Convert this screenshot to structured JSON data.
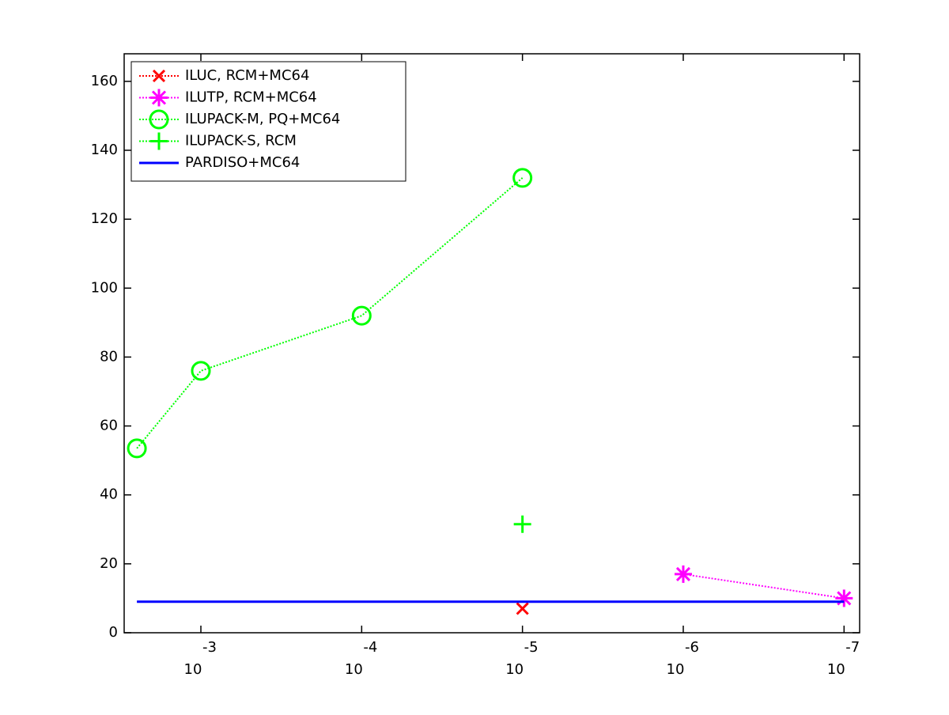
{
  "chart_data": {
    "type": "line",
    "xscale": "log",
    "xlim": [
      0.003,
      8e-08
    ],
    "xticks": [
      {
        "value": 0.001,
        "label": "10",
        "exponent": "-3"
      },
      {
        "value": 0.0001,
        "label": "10",
        "exponent": "-4"
      },
      {
        "value": 1e-05,
        "label": "10",
        "exponent": "-5"
      },
      {
        "value": 1e-06,
        "label": "10",
        "exponent": "-6"
      },
      {
        "value": 1e-07,
        "label": "10",
        "exponent": "-7"
      }
    ],
    "ylim": [
      0,
      168
    ],
    "yticks": [
      0,
      20,
      40,
      60,
      80,
      100,
      120,
      140,
      160
    ],
    "grid": false,
    "legend": "northwest",
    "series": [
      {
        "name": "ILUC, RCM+MC64",
        "color": "#ff0000",
        "marker": "x",
        "line": "dotted",
        "x": [
          1e-05
        ],
        "values": [
          7
        ]
      },
      {
        "name": "ILUTP, RCM+MC64",
        "color": "#ff00ff",
        "marker": "*",
        "line": "dotted",
        "x": [
          1e-06,
          1e-07
        ],
        "values": [
          17,
          10
        ]
      },
      {
        "name": "ILUPACK-M, PQ+MC64",
        "color": "#00ff00",
        "marker": "o",
        "line": "dotted",
        "x": [
          0.0025,
          0.001,
          0.0001,
          1e-05
        ],
        "values": [
          53.5,
          76,
          92,
          132
        ]
      },
      {
        "name": "ILUPACK-S, RCM",
        "color": "#00ff00",
        "marker": "+",
        "line": "dotted",
        "x": [
          1e-05
        ],
        "values": [
          31.5
        ]
      },
      {
        "name": "PARDISO+MC64",
        "color": "#0000ff",
        "marker": "none",
        "line": "solid",
        "x": [
          0.0025,
          1e-07
        ],
        "values": [
          9,
          9
        ]
      }
    ]
  }
}
